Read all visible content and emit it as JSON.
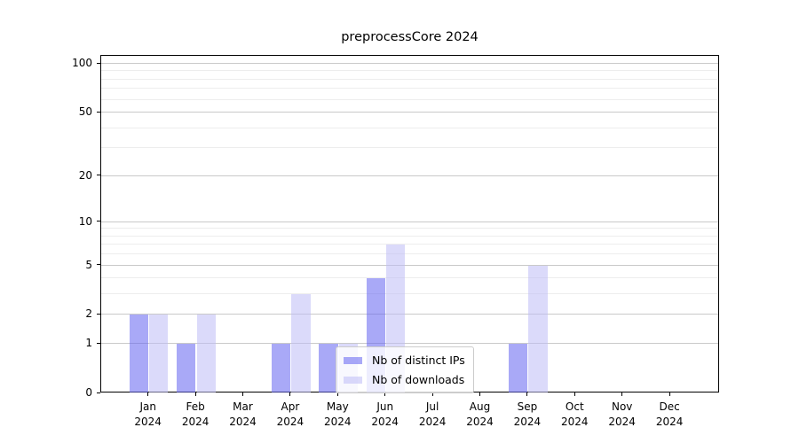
{
  "figure_title": "preprocessCore 2024",
  "chart_data": {
    "type": "bar",
    "title": "preprocessCore 2024",
    "categories": [
      "Jan 2024",
      "Feb 2024",
      "Mar 2024",
      "Apr 2024",
      "May 2024",
      "Jun 2024",
      "Jul 2024",
      "Aug 2024",
      "Sep 2024",
      "Oct 2024",
      "Nov 2024",
      "Dec 2024"
    ],
    "x_tick_month": [
      "Jan",
      "Feb",
      "Mar",
      "Apr",
      "May",
      "Jun",
      "Jul",
      "Aug",
      "Sep",
      "Oct",
      "Nov",
      "Dec"
    ],
    "x_tick_year": "2024",
    "series": [
      {
        "name": "Nb of distinct IPs",
        "color": "rgba(98,98,240,0.55)",
        "values": [
          2,
          1,
          0,
          1,
          1,
          4,
          0,
          0,
          1,
          0,
          0,
          0
        ]
      },
      {
        "name": "Nb of downloads",
        "color": "rgba(190,188,246,0.55)",
        "values": [
          2,
          2,
          0,
          3,
          1,
          7,
          0,
          0,
          5,
          0,
          0,
          0
        ]
      }
    ],
    "yscale": "log1p",
    "ylabel": "",
    "xlabel": "",
    "y_major_ticks": [
      0,
      1,
      2,
      5,
      10,
      20,
      50,
      100
    ],
    "y_minor_gridlines": [
      3,
      4,
      6,
      7,
      8,
      9,
      30,
      40,
      60,
      70,
      80,
      90
    ],
    "ylim": [
      0,
      112
    ],
    "grid": true,
    "legend_position": "lower center",
    "colors": {
      "grid_major": "#c9c9c9",
      "grid_minor": "#ededed",
      "axis": "#000000",
      "legend_border": "#cccccc"
    }
  }
}
